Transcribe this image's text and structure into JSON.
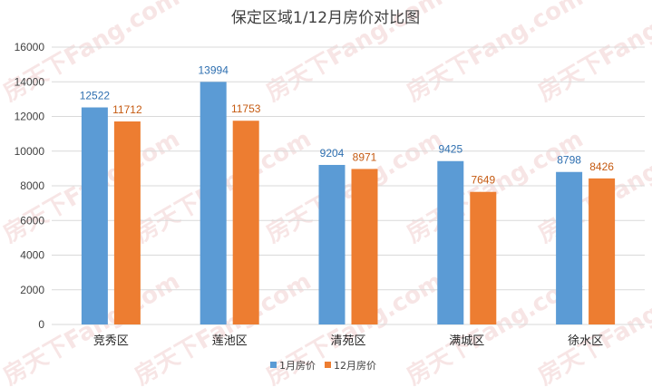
{
  "colors": {
    "series1": "#5b9bd5",
    "series2": "#ed7d31",
    "grid": "#d9d9d9",
    "text": "#404040",
    "watermark": "#e6a4a4"
  },
  "watermark_text": "房天下Fang.com",
  "chart_data": {
    "type": "bar",
    "title": "保定区域1/12月房价对比图",
    "xlabel": "",
    "ylabel": "",
    "ylim": [
      0,
      16000
    ],
    "yticks": [
      0,
      2000,
      4000,
      6000,
      8000,
      10000,
      12000,
      14000,
      16000
    ],
    "grid": true,
    "legend_position": "bottom",
    "categories": [
      "竞秀区",
      "莲池区",
      "清苑区",
      "满城区",
      "徐水区"
    ],
    "series": [
      {
        "name": "1月房价",
        "values": [
          12522,
          13994,
          9204,
          9425,
          8798
        ]
      },
      {
        "name": "12月房价",
        "values": [
          11712,
          11753,
          8971,
          7649,
          8426
        ]
      }
    ]
  }
}
